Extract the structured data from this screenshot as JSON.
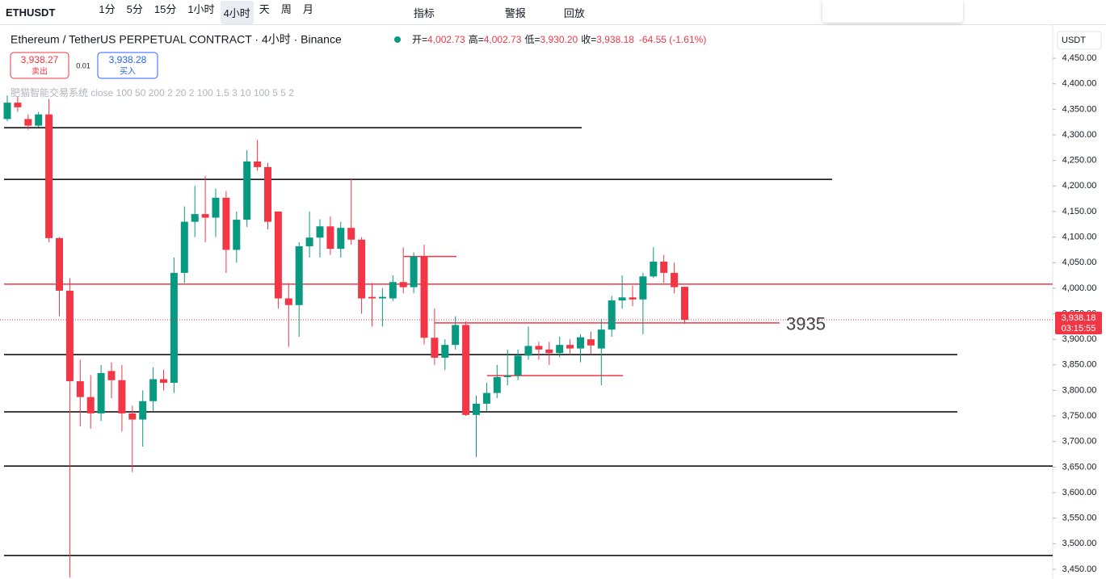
{
  "toolbar": {
    "symbol": "ETHUSDT",
    "intervals": [
      "1分",
      "5分",
      "15分",
      "1小时",
      "4小时",
      "天",
      "周",
      "月"
    ],
    "indicators": "指标",
    "alerts": "警报",
    "replay": "回放"
  },
  "legend": {
    "title": "Ethereum / TetherUS PERPETUAL CONTRACT · 4小时 · Binance",
    "open_label": "开=",
    "open": "4,002.73",
    "high_label": "高=",
    "high": "4,002.73",
    "low_label": "低=",
    "low": "3,930.20",
    "close_label": "收=",
    "close": "3,938.18",
    "change": "-64.55 (-1.61%)",
    "sell_price": "3,938.27",
    "sell": "卖出",
    "spread": "0.01",
    "buy_price": "3,938.28",
    "buy": "买入",
    "indicator": "肥猫智能交易系统 close 100 50 200 2 20 2 100 1.5 3 10 100 5 5 2"
  },
  "chart_data": {
    "type": "candlestick",
    "currency": "USDT",
    "up_color": "#089981",
    "down_color": "#f23645",
    "open": [
      4331,
      4363,
      4331,
      4318,
      4340,
      4098,
      3995,
      3818,
      3787,
      3755,
      3838,
      3820,
      3755,
      3743,
      3779,
      3822,
      3815,
      4030,
      4130,
      4145,
      4138,
      4177,
      4075,
      4134,
      4248,
      4237,
      4150,
      3980,
      3967,
      4082,
      4099,
      4121,
      4077,
      4118,
      4095,
      3983,
      3980,
      3980,
      4012,
      4002,
      4062,
      3903,
      3864,
      3889,
      3928,
      3752,
      3774,
      3795,
      3826,
      3829,
      3868,
      3887,
      3880,
      3873,
      3889,
      3882,
      3900,
      3882,
      3919,
      3976,
      3982,
      3978,
      4023,
      4052,
      4030,
      4002.73
    ],
    "high": [
      4377,
      4375,
      4340,
      4345,
      4370,
      4100,
      4020,
      3860,
      3830,
      3850,
      3855,
      3850,
      3770,
      3800,
      3845,
      3840,
      4060,
      4160,
      4200,
      4220,
      4195,
      4190,
      4150,
      4270,
      4290,
      4245,
      4150,
      4010,
      4090,
      4150,
      4135,
      4140,
      4130,
      4215,
      4100,
      4010,
      4000,
      4025,
      4080,
      4070,
      4085,
      3960,
      3900,
      3945,
      3935,
      3790,
      3815,
      3850,
      3880,
      3880,
      3925,
      3895,
      3895,
      3905,
      3900,
      3910,
      3915,
      3940,
      3985,
      4025,
      4005,
      4030,
      4080,
      4065,
      4050,
      4002.73
    ],
    "low": [
      4327,
      4345,
      4310,
      4315,
      4090,
      3945,
      3434,
      3730,
      3725,
      3740,
      3785,
      3720,
      3640,
      3690,
      3760,
      3800,
      3795,
      4010,
      4100,
      4090,
      4100,
      4030,
      4050,
      4120,
      4230,
      4115,
      3960,
      3885,
      3905,
      4060,
      4060,
      4065,
      4060,
      4085,
      3950,
      3925,
      3925,
      3975,
      3990,
      3990,
      3890,
      3850,
      3840,
      3880,
      3750,
      3670,
      3760,
      3785,
      3810,
      3820,
      3860,
      3860,
      3850,
      3865,
      3870,
      3855,
      3870,
      3810,
      3905,
      3960,
      3965,
      3910,
      4020,
      4010,
      3990,
      3930.2
    ],
    "close": [
      4363,
      4354,
      4318,
      4340,
      4098,
      3995,
      3818,
      3787,
      3755,
      3834,
      3820,
      3755,
      3743,
      3779,
      3822,
      3815,
      4030,
      4130,
      4145,
      4138,
      4177,
      4075,
      4134,
      4248,
      4237,
      4130,
      3980,
      3967,
      4082,
      4099,
      4121,
      4077,
      4118,
      4095,
      3980,
      3980,
      3983,
      4012,
      4002,
      4062,
      3903,
      3864,
      3889,
      3928,
      3752,
      3774,
      3795,
      3826,
      3829,
      3868,
      3887,
      3880,
      3873,
      3889,
      3882,
      3904,
      3888,
      3919,
      3976,
      3982,
      3978,
      4023,
      4052,
      4030,
      4002,
      3938.18
    ],
    "levels": [
      {
        "value": 4314,
        "color": "#000000"
      },
      {
        "value": 4213,
        "color": "#000000"
      },
      {
        "value": 3870,
        "color": "#000000"
      },
      {
        "value": 3758,
        "color": "#000000"
      },
      {
        "value": 3652,
        "color": "#000000"
      },
      {
        "value": 3477,
        "color": "#000000"
      },
      {
        "value": 4008,
        "color": "#f23645"
      },
      {
        "value": 3932,
        "color": "#f23645"
      },
      {
        "value": 4062,
        "color": "#f23645"
      },
      {
        "value": 3829,
        "color": "#f23645"
      }
    ],
    "annotation": "3935",
    "price_label": "3,938.18",
    "countdown": "03:15:55",
    "ylim": [
      3431,
      4507
    ],
    "yticks": [
      {
        "value": 4450,
        "label": "4,450.00"
      },
      {
        "value": 4400,
        "label": "4,400.00"
      },
      {
        "value": 4350,
        "label": "4,350.00"
      },
      {
        "value": 4300,
        "label": "4,300.00"
      },
      {
        "value": 4250,
        "label": "4,250.00"
      },
      {
        "value": 4200,
        "label": "4,200.00"
      },
      {
        "value": 4150,
        "label": "4,150.00"
      },
      {
        "value": 4100,
        "label": "4,100.00"
      },
      {
        "value": 4050,
        "label": "4,050.00"
      },
      {
        "value": 4000,
        "label": "4,000.00"
      },
      {
        "value": 3950,
        "label": "3,950.00"
      },
      {
        "value": 3900,
        "label": "3,900.00"
      },
      {
        "value": 3850,
        "label": "3,850.00"
      },
      {
        "value": 3800,
        "label": "3,800.00"
      },
      {
        "value": 3750,
        "label": "3,750.00"
      },
      {
        "value": 3700,
        "label": "3,700.00"
      },
      {
        "value": 3650,
        "label": "3,650.00"
      },
      {
        "value": 3600,
        "label": "3,600.00"
      },
      {
        "value": 3550,
        "label": "3,550.00"
      },
      {
        "value": 3500,
        "label": "3,500.00"
      },
      {
        "value": 3450,
        "label": "3,450.00"
      }
    ]
  }
}
